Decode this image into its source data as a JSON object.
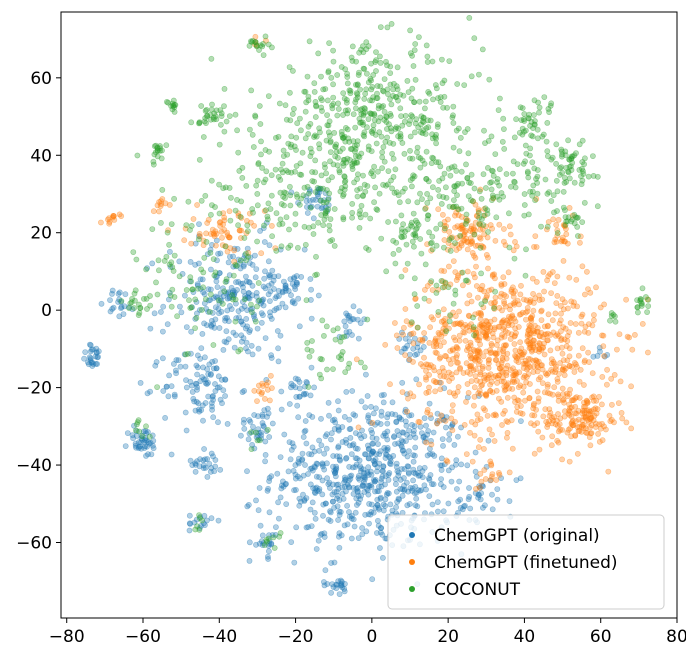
{
  "chart_data": {
    "type": "scatter",
    "title": "",
    "xlabel": "",
    "ylabel": "",
    "xlim": [
      -81.5,
      80
    ],
    "ylim": [
      -79.5,
      77
    ],
    "x_ticks": [
      -80,
      -60,
      -40,
      -20,
      0,
      20,
      40,
      60,
      80
    ],
    "y_ticks": [
      -60,
      -40,
      -20,
      0,
      20,
      40,
      60
    ],
    "grid": false,
    "legend_position": "lower-right",
    "series": [
      {
        "name": "ChemGPT (original)",
        "color": "#1f77b4",
        "clusters": [
          {
            "cx": 0,
            "cy": -42,
            "sx": 13,
            "sy": 10,
            "n": 650
          },
          {
            "cx": -36,
            "cy": 3,
            "sx": 9,
            "sy": 8,
            "n": 260
          },
          {
            "cx": -45,
            "cy": -20,
            "sx": 5,
            "sy": 5,
            "n": 90
          },
          {
            "cx": -60,
            "cy": -34,
            "sx": 2,
            "sy": 2,
            "n": 40
          },
          {
            "cx": -73,
            "cy": -12,
            "sx": 1.5,
            "sy": 1.5,
            "n": 25
          },
          {
            "cx": -66,
            "cy": 2,
            "sx": 2,
            "sy": 2,
            "n": 20
          },
          {
            "cx": -14,
            "cy": 28,
            "sx": 2,
            "sy": 2,
            "n": 30
          },
          {
            "cx": -30,
            "cy": -30,
            "sx": 2.5,
            "sy": 2.5,
            "n": 30
          },
          {
            "cx": -43,
            "cy": -39,
            "sx": 2,
            "sy": 2,
            "n": 25
          },
          {
            "cx": -28,
            "cy": -60,
            "sx": 2,
            "sy": 2,
            "n": 20
          },
          {
            "cx": -9,
            "cy": -71,
            "sx": 2,
            "sy": 1,
            "n": 20
          },
          {
            "cx": 28,
            "cy": -48,
            "sx": 3,
            "sy": 3,
            "n": 25
          },
          {
            "cx": -45,
            "cy": -55,
            "sx": 1.5,
            "sy": 1.5,
            "n": 15
          },
          {
            "cx": -22,
            "cy": 7,
            "sx": 2,
            "sy": 2,
            "n": 20
          },
          {
            "cx": 60,
            "cy": -12,
            "sx": 1,
            "sy": 1,
            "n": 6
          },
          {
            "cx": -18,
            "cy": -20,
            "sx": 2,
            "sy": 2,
            "n": 20
          },
          {
            "cx": -5,
            "cy": -2,
            "sx": 2,
            "sy": 2,
            "n": 20
          },
          {
            "cx": 10,
            "cy": -10,
            "sx": 2,
            "sy": 2,
            "n": 20
          }
        ]
      },
      {
        "name": "ChemGPT (finetuned)",
        "color": "#ff7f0e",
        "clusters": [
          {
            "cx": 35,
            "cy": -10,
            "sx": 13,
            "sy": 11,
            "n": 850
          },
          {
            "cx": 55,
            "cy": -28,
            "sx": 5,
            "sy": 3,
            "n": 120
          },
          {
            "cx": 25,
            "cy": 20,
            "sx": 5,
            "sy": 4,
            "n": 100
          },
          {
            "cx": -38,
            "cy": 20,
            "sx": 5,
            "sy": 3,
            "n": 60
          },
          {
            "cx": -68,
            "cy": 24,
            "sx": 1,
            "sy": 0.8,
            "n": 12
          },
          {
            "cx": -56,
            "cy": 27,
            "sx": 1,
            "sy": 1,
            "n": 10
          },
          {
            "cx": 30,
            "cy": -43,
            "sx": 2,
            "sy": 2,
            "n": 15
          },
          {
            "cx": 50,
            "cy": 20,
            "sx": 3,
            "sy": 3,
            "n": 25
          },
          {
            "cx": -28,
            "cy": -20,
            "sx": 2,
            "sy": 2,
            "n": 15
          },
          {
            "cx": -30,
            "cy": 69,
            "sx": 1,
            "sy": 0.8,
            "n": 5
          }
        ]
      },
      {
        "name": "COCONUT",
        "color": "#2ca02c",
        "clusters": [
          {
            "cx": 0,
            "cy": 50,
            "sx": 14,
            "sy": 9,
            "n": 420
          },
          {
            "cx": -20,
            "cy": 30,
            "sx": 14,
            "sy": 8,
            "n": 220
          },
          {
            "cx": 28,
            "cy": 30,
            "sx": 12,
            "sy": 6,
            "n": 170
          },
          {
            "cx": 42,
            "cy": 48,
            "sx": 3,
            "sy": 4,
            "n": 50
          },
          {
            "cx": 51,
            "cy": 38,
            "sx": 4,
            "sy": 3,
            "n": 50
          },
          {
            "cx": 53,
            "cy": 24,
            "sx": 1.5,
            "sy": 1.5,
            "n": 15
          },
          {
            "cx": -30,
            "cy": 69,
            "sx": 1.5,
            "sy": 1,
            "n": 15
          },
          {
            "cx": -41,
            "cy": 50,
            "sx": 2,
            "sy": 2,
            "n": 30
          },
          {
            "cx": -52,
            "cy": 53,
            "sx": 0.8,
            "sy": 0.8,
            "n": 12
          },
          {
            "cx": -56,
            "cy": 41,
            "sx": 1,
            "sy": 1,
            "n": 15
          },
          {
            "cx": 71,
            "cy": 2,
            "sx": 1,
            "sy": 1.5,
            "n": 15
          },
          {
            "cx": -62,
            "cy": 2,
            "sx": 1.5,
            "sy": 1.5,
            "n": 15
          },
          {
            "cx": -45,
            "cy": 5,
            "sx": 8,
            "sy": 9,
            "n": 80
          },
          {
            "cx": 10,
            "cy": 20,
            "sx": 3,
            "sy": 3,
            "n": 40
          },
          {
            "cx": -10,
            "cy": -12,
            "sx": 4,
            "sy": 5,
            "n": 30
          },
          {
            "cx": -27,
            "cy": -60,
            "sx": 1.5,
            "sy": 1.5,
            "n": 8
          },
          {
            "cx": -45,
            "cy": -55,
            "sx": 1,
            "sy": 1,
            "n": 6
          },
          {
            "cx": -60,
            "cy": -31,
            "sx": 1.5,
            "sy": 1.5,
            "n": 8
          },
          {
            "cx": 63,
            "cy": -2,
            "sx": 1,
            "sy": 1,
            "n": 6
          },
          {
            "cx": -30,
            "cy": -33,
            "sx": 1.5,
            "sy": 1.5,
            "n": 6
          },
          {
            "cx": 20,
            "cy": 5,
            "sx": 8,
            "sy": 6,
            "n": 40
          }
        ]
      }
    ]
  }
}
